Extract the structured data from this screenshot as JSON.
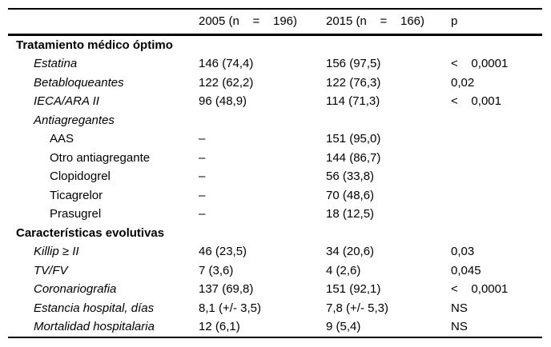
{
  "colors": {
    "background": "#ffffff",
    "text": "#000000",
    "rule": "#000000"
  },
  "table": {
    "header": {
      "col_label": "",
      "col_2005": "2005 (n    =    196)",
      "col_2015": "2015 (n    =    166)",
      "col_p": "p"
    },
    "rows": [
      {
        "type": "section",
        "label": "Tratamiento médico óptimo",
        "y2005": "",
        "y2015": "",
        "p": ""
      },
      {
        "type": "item",
        "label": "Estatina",
        "y2005": "146 (74,4)",
        "y2015": "156 (97,5)",
        "p": "<    0,0001"
      },
      {
        "type": "item",
        "label": "Betabloqueantes",
        "y2005": "122 (62,2)",
        "y2015": "122 (76,3)",
        "p": "0,02"
      },
      {
        "type": "item",
        "label": "IECA/ARA II",
        "y2005": "96 (48,9)",
        "y2015": "114 (71,3)",
        "p": "<    0,001"
      },
      {
        "type": "item",
        "label": "Antiagregantes",
        "y2005": "",
        "y2015": "",
        "p": ""
      },
      {
        "type": "subitem",
        "label": "AAS",
        "y2005": "–",
        "y2015": "151 (95,0)",
        "p": ""
      },
      {
        "type": "subitem",
        "label": "Otro antiagregante",
        "y2005": "–",
        "y2015": "144 (86,7)",
        "p": ""
      },
      {
        "type": "subitem",
        "label": "Clopidogrel",
        "y2005": "–",
        "y2015": "56 (33,8)",
        "p": ""
      },
      {
        "type": "subitem",
        "label": "Ticagrelor",
        "y2005": "–",
        "y2015": "70 (48,6)",
        "p": ""
      },
      {
        "type": "subitem",
        "label": "Prasugrel",
        "y2005": "–",
        "y2015": "18 (12,5)",
        "p": ""
      },
      {
        "type": "section",
        "label": "Características evolutivas",
        "y2005": "",
        "y2015": "",
        "p": ""
      },
      {
        "type": "item",
        "label": "Killip ≥ II",
        "y2005": "46 (23,5)",
        "y2015": "34 (20,6)",
        "p": "0,03"
      },
      {
        "type": "item",
        "label": "TV/FV",
        "y2005": "7 (3,6)",
        "y2015": "4 (2,6)",
        "p": "0,045"
      },
      {
        "type": "item",
        "label": "Coronariografia",
        "y2005": "137 (69,8)",
        "y2015": "151 (92,1)",
        "p": "<    0,0001"
      },
      {
        "type": "item",
        "label": "Estancia hospital, días",
        "y2005": "8,1 (+/- 3,5)",
        "y2015": "7,8 (+/- 5,3)",
        "p": "NS"
      },
      {
        "type": "item",
        "label": "Mortalidad hospitalaria",
        "y2005": "12 (6,1)",
        "y2015": "9 (5,4)",
        "p": "NS"
      }
    ]
  }
}
